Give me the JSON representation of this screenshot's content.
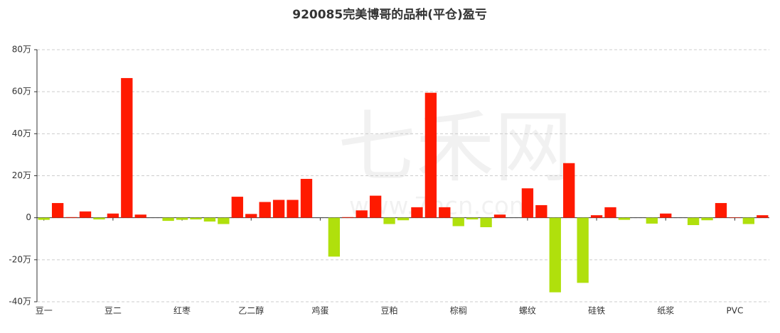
{
  "chart_data": {
    "type": "bar",
    "title": "920085完美博哥的品种(平仓)盈亏",
    "watermark": [
      "七禾网",
      "www.7hcn.com"
    ],
    "categories": [
      "豆一",
      null,
      null,
      null,
      null,
      "豆二",
      null,
      null,
      null,
      null,
      "红枣",
      null,
      null,
      null,
      null,
      "乙二醇",
      null,
      null,
      null,
      null,
      "鸡蛋",
      null,
      null,
      null,
      null,
      "豆粕",
      null,
      null,
      null,
      null,
      "棕榈",
      null,
      null,
      null,
      null,
      "螺纹",
      null,
      null,
      null,
      null,
      "硅铁",
      null,
      null,
      null,
      null,
      "纸浆",
      null,
      null,
      null,
      null,
      "PVC",
      null,
      null
    ],
    "values": [
      -1,
      7,
      0.3,
      3,
      -0.8,
      2,
      66.5,
      1.5,
      0,
      -1.5,
      -1,
      -0.8,
      -1.8,
      -3,
      10,
      1.8,
      7.5,
      8.5,
      8.5,
      18.5,
      0,
      -18.5,
      0.3,
      3.5,
      10.5,
      -3,
      -1.2,
      5,
      59.5,
      5,
      -4,
      -0.8,
      -4.5,
      1.5,
      0,
      14,
      6,
      -35.5,
      26,
      -31,
      1.2,
      5,
      -1,
      0,
      -2.8,
      2,
      0,
      -3.5,
      -1.2,
      7,
      0.2,
      -3,
      1.2
    ],
    "positive_color": "#ff1a00",
    "negative_color": "#b0e00c",
    "ylim": [
      -40,
      80
    ],
    "yticks": [
      {
        "value": -40,
        "label": "-40万"
      },
      {
        "value": -20,
        "label": "-20万"
      },
      {
        "value": 0,
        "label": "0"
      },
      {
        "value": 20,
        "label": "20万"
      },
      {
        "value": 40,
        "label": "40万"
      },
      {
        "value": 60,
        "label": "60万"
      },
      {
        "value": 80,
        "label": "80万"
      }
    ],
    "grid": true
  }
}
